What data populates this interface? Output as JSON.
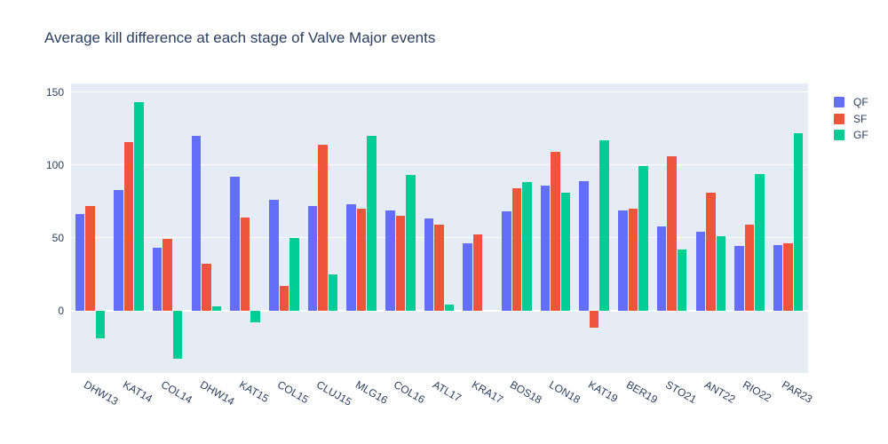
{
  "title": "Average kill difference at each stage of Valve Major events",
  "colors": {
    "paper_background": "#ffffff",
    "plot_background": "#e5ecf6",
    "grid": "#ffffff",
    "text": "#2a3f5f"
  },
  "legend": {
    "position": "right",
    "items": [
      {
        "label": "QF",
        "color": "#636efa"
      },
      {
        "label": "SF",
        "color": "#ef553b"
      },
      {
        "label": "GF",
        "color": "#00cc96"
      }
    ]
  },
  "chart_data": {
    "type": "bar",
    "bar_mode": "group",
    "title": "Average kill difference at each stage of Valve Major events",
    "xlabel": "",
    "ylabel": "",
    "grid": true,
    "legend_position": "right",
    "ylim": [
      -43,
      156
    ],
    "yticks": [
      0,
      50,
      100,
      150
    ],
    "categories": [
      "DHW13",
      "KAT14",
      "COL14",
      "DHW14",
      "KAT15",
      "COL15",
      "CLUJ15",
      "MLG16",
      "COL16",
      "ATL17",
      "KRA17",
      "BOS18",
      "LON18",
      "KAT19",
      "BER19",
      "STO21",
      "ANT22",
      "RIO22",
      "PAR23"
    ],
    "series": [
      {
        "name": "QF",
        "color": "#636efa",
        "values": [
          66,
          83,
          43,
          120,
          92,
          76,
          72,
          73,
          69,
          63,
          46,
          68,
          86,
          89,
          69,
          58,
          54,
          44,
          45
        ]
      },
      {
        "name": "SF",
        "color": "#ef553b",
        "values": [
          72,
          116,
          49,
          32,
          64,
          17,
          114,
          70,
          65,
          59,
          52,
          84,
          109,
          -12,
          70,
          106,
          81,
          59,
          46
        ]
      },
      {
        "name": "GF",
        "color": "#00cc96",
        "values": [
          -19,
          143,
          -33,
          3,
          -8,
          50,
          25,
          120,
          93,
          4,
          0,
          88,
          81,
          117,
          99,
          42,
          51,
          94,
          122
        ]
      }
    ]
  }
}
